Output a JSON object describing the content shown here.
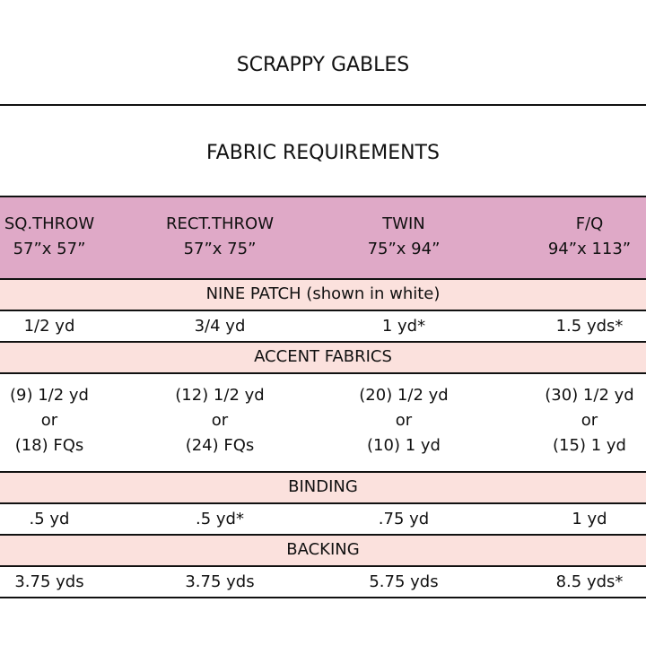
{
  "header": {
    "title": "SCRAPPY GABLES",
    "subtitle": "FABRIC REQUIREMENTS"
  },
  "table": {
    "columns": [
      {
        "name": "SQ.THROW",
        "size": "57”x 57”"
      },
      {
        "name": "RECT.THROW",
        "size": "57”x 75”"
      },
      {
        "name": "TWIN",
        "size": "75”x 94”"
      },
      {
        "name": "F/Q",
        "size": "94”x 113”"
      }
    ],
    "sections": [
      {
        "title": "NINE PATCH (shown in white)",
        "values": [
          [
            "1/2 yd"
          ],
          [
            "3/4 yd"
          ],
          [
            "1 yd*"
          ],
          [
            "1.5 yds*"
          ]
        ]
      },
      {
        "title": "ACCENT FABRICS",
        "values": [
          [
            "(9) 1/2 yd",
            "or",
            "(18) FQs"
          ],
          [
            "(12) 1/2 yd",
            "or",
            "(24) FQs"
          ],
          [
            "(20) 1/2 yd",
            "or",
            "(10) 1 yd"
          ],
          [
            "(30) 1/2 yd",
            "or",
            "(15) 1 yd"
          ]
        ]
      },
      {
        "title": "BINDING",
        "values": [
          [
            ".5 yd"
          ],
          [
            ".5 yd*"
          ],
          [
            ".75 yd"
          ],
          [
            "1 yd"
          ]
        ]
      },
      {
        "title": "BACKING",
        "values": [
          [
            "3.75 yds"
          ],
          [
            "3.75 yds"
          ],
          [
            "5.75 yds"
          ],
          [
            "8.5 yds*"
          ]
        ]
      }
    ]
  }
}
